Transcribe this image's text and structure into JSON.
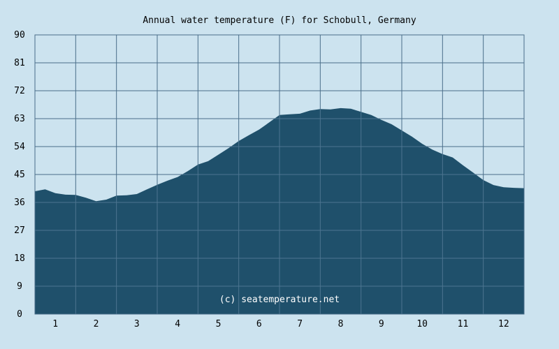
{
  "chart_data": {
    "type": "area",
    "title": "Annual water temperature (F) for Schobull, Germany",
    "watermark": "(c) seatemperature.net",
    "x_tick_labels": [
      "1",
      "2",
      "3",
      "4",
      "5",
      "6",
      "7",
      "8",
      "9",
      "10",
      "11",
      "12"
    ],
    "y_tick_labels": [
      "0",
      "9",
      "18",
      "27",
      "36",
      "45",
      "54",
      "63",
      "72",
      "81",
      "90"
    ],
    "xlim": [
      0.5,
      12.5
    ],
    "ylim": [
      0,
      90
    ],
    "y_ticks": [
      0,
      9,
      18,
      27,
      36,
      45,
      54,
      63,
      72,
      81,
      90
    ],
    "grid": true,
    "x": [
      0.5,
      0.75,
      1.0,
      1.25,
      1.5,
      1.75,
      2.0,
      2.25,
      2.5,
      2.75,
      3.0,
      3.25,
      3.5,
      3.75,
      4.0,
      4.25,
      4.5,
      4.75,
      5.0,
      5.25,
      5.5,
      5.75,
      6.0,
      6.25,
      6.5,
      6.75,
      7.0,
      7.25,
      7.5,
      7.75,
      8.0,
      8.25,
      8.5,
      8.75,
      9.0,
      9.25,
      9.5,
      9.75,
      10.0,
      10.25,
      10.5,
      10.75,
      11.0,
      11.25,
      11.5,
      11.75,
      12.0,
      12.25,
      12.5
    ],
    "values": [
      39.6,
      40.2,
      39.0,
      38.5,
      38.4,
      37.5,
      36.4,
      36.9,
      38.2,
      38.3,
      38.7,
      40.2,
      41.7,
      43.0,
      44.2,
      46.1,
      48.2,
      49.3,
      51.4,
      53.5,
      55.8,
      57.7,
      59.5,
      61.8,
      64.2,
      64.4,
      64.6,
      65.6,
      66.1,
      66.0,
      66.4,
      66.2,
      65.2,
      64.2,
      62.6,
      61.2,
      59.2,
      57.2,
      54.9,
      53.0,
      51.6,
      50.5,
      48.0,
      45.6,
      43.2,
      41.6,
      40.9,
      40.7,
      40.6
    ],
    "colors": {
      "background": "#cce3ef",
      "fill": "#1f506b",
      "grid": "#4a6e8a",
      "grid_over_fill": "#4d7590",
      "watermark": "#ffffff"
    }
  }
}
